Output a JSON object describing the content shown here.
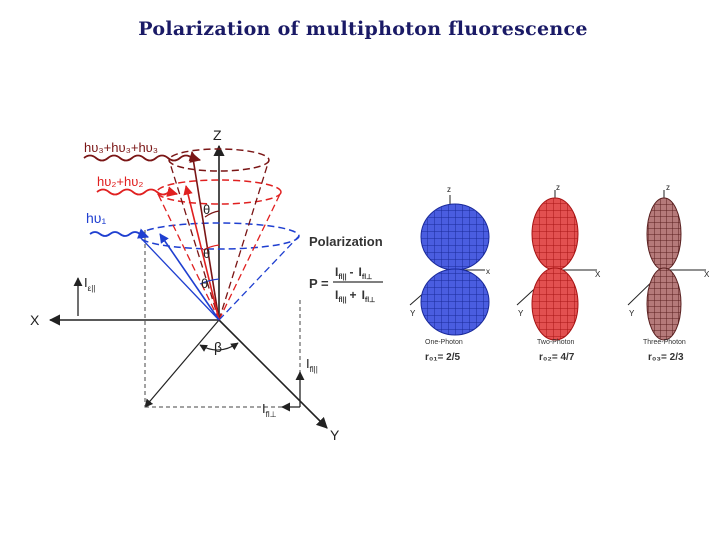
{
  "slide": {
    "title": "Polarization of multiphoton fluorescence"
  },
  "diagram": {
    "axes": {
      "z": "Z",
      "x": "X",
      "y": "Y"
    },
    "photons": {
      "three": "hυ₃+hυ₃+hυ₃",
      "two": "hυ₂+hυ₂",
      "one": "hυ₁"
    },
    "theta": "θ",
    "beta": "β",
    "intensity_exc": {
      "base": "I",
      "sub": "ε||"
    },
    "intensity_fl_par": {
      "base": "I",
      "sub": "fl||"
    },
    "intensity_fl_perp": {
      "base": "I",
      "sub": "fl⊥"
    },
    "polarization_heading": "Polarization",
    "formula": {
      "lhs": "P =",
      "num_a": "I",
      "num_a_sub": "fl||",
      "num_op": "-",
      "num_b": "I",
      "num_b_sub": "fl⊥",
      "den_a": "I",
      "den_a_sub": "fl||",
      "den_op": "+",
      "den_b": "I",
      "den_b_sub": "fl⊥"
    }
  },
  "panels": [
    {
      "name": "One-Photon",
      "r_label": "r₀₁= 2/5",
      "axis_z": "z",
      "axis_x": "x",
      "axis_y": "Y",
      "color": "#2233cc"
    },
    {
      "name": "Two-Photon",
      "r_label": "r₀₂= 4/7",
      "axis_z": "z",
      "axis_x": "X",
      "axis_y": "Y",
      "color": "#d42a2a"
    },
    {
      "name": "Three-Photon",
      "r_label": "r₀₃= 2/3",
      "axis_z": "z",
      "axis_x": "X",
      "axis_y": "Y",
      "color": "#8a3b3b"
    }
  ],
  "colors": {
    "three": "#7a1515",
    "two": "#e02020",
    "one": "#1f3fd0",
    "axis": "#222222"
  }
}
